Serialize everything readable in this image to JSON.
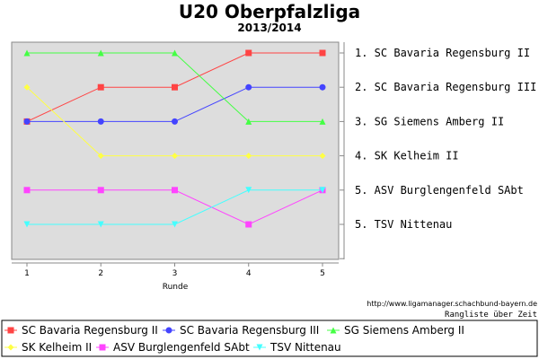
{
  "chart_data": {
    "type": "line",
    "title": "U20 Oberpfalzliga",
    "subtitle": "2013/2014",
    "xlabel": "Runde",
    "ylabel": "",
    "x": [
      1,
      2,
      3,
      4,
      5
    ],
    "ylim": [
      1,
      7
    ],
    "y_inverted": true,
    "grid": false,
    "legend_position": "bottom",
    "final_ranking": [
      "1. SC Bavaria Regensburg II",
      "2. SC Bavaria Regensburg III",
      "3. SG Siemens Amberg II",
      "4. SK Kelheim II",
      "5. ASV Burglengenfeld SAbt",
      "5. TSV Nittenau"
    ],
    "series": [
      {
        "name": "SC Bavaria Regensburg II",
        "color": "#ff4444",
        "marker": "square",
        "values": [
          3,
          2,
          2,
          1,
          1
        ]
      },
      {
        "name": "SC Bavaria Regensburg III",
        "color": "#4444ff",
        "marker": "circle",
        "values": [
          3,
          3,
          3,
          2,
          2
        ]
      },
      {
        "name": "SG Siemens Amberg II",
        "color": "#44ff44",
        "marker": "triangle-up",
        "values": [
          1,
          1,
          1,
          3,
          3
        ]
      },
      {
        "name": "SK Kelheim II",
        "color": "#ffff44",
        "marker": "diamond",
        "values": [
          2,
          4,
          4,
          4,
          4
        ]
      },
      {
        "name": "ASV Burglengenfeld SAbt",
        "color": "#ff44ff",
        "marker": "square",
        "values": [
          5,
          5,
          5,
          6,
          5
        ]
      },
      {
        "name": "TSV Nittenau",
        "color": "#44ffff",
        "marker": "triangle-down",
        "values": [
          6,
          6,
          6,
          5,
          5
        ]
      }
    ]
  },
  "footer": {
    "url": "http://www.ligamanager.schachbund-bayern.de",
    "caption": "Rangliste über Zeit"
  }
}
